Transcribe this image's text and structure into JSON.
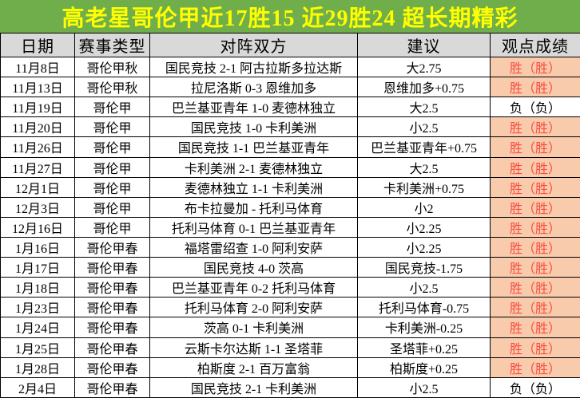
{
  "title": "高老星哥伦甲近17胜15  近29胜24  超长期精彩",
  "colors": {
    "title_bg": "#6fae4a",
    "title_text": "#ffff00",
    "header_bg": "#d9d9d9",
    "win_bg": "#f8cbad",
    "win_text": "#fa4b3e",
    "loss_text": "#000000",
    "border": "#000000"
  },
  "table": {
    "headers": [
      "日期",
      "赛事类型",
      "对阵双方",
      "建议",
      "观点成绩"
    ],
    "rows": [
      {
        "date": "11月8日",
        "league": "哥伦甲秋",
        "match": "国民竞技 2-1 阿古拉斯多拉达斯",
        "tip": "大2.75",
        "result": "胜（胜）",
        "outcome": "win"
      },
      {
        "date": "11月13日",
        "league": "哥伦甲秋",
        "match": "拉尼洛斯 0-3 恩维加多",
        "tip": "恩维加多+0.75",
        "result": "胜（胜）",
        "outcome": "win"
      },
      {
        "date": "11月19日",
        "league": "哥伦甲",
        "match": "巴兰基亚青年 1-0 麦德林独立",
        "tip": "大2.5",
        "result": "负（负）",
        "outcome": "loss"
      },
      {
        "date": "11月20日",
        "league": "哥伦甲",
        "match": "国民竞技 1-0 卡利美洲",
        "tip": "小2.5",
        "result": "胜（胜）",
        "outcome": "win"
      },
      {
        "date": "11月26日",
        "league": "哥伦甲",
        "match": "国民竞技 1-1 巴兰基亚青年",
        "tip": "巴兰基亚青年+0.75",
        "result": "胜（胜）",
        "outcome": "win"
      },
      {
        "date": "11月27日",
        "league": "哥伦甲",
        "match": "卡利美洲 2-1 麦德林独立",
        "tip": "大2.5",
        "result": "胜（胜）",
        "outcome": "win"
      },
      {
        "date": "12月1日",
        "league": "哥伦甲",
        "match": "麦德林独立 1-1 卡利美洲",
        "tip": "卡利美洲+0.75",
        "result": "胜（胜）",
        "outcome": "win"
      },
      {
        "date": "12月3日",
        "league": "哥伦甲",
        "match": "布卡拉曼加 - 托利马体育",
        "tip": "小2",
        "result": "胜（胜）",
        "outcome": "win"
      },
      {
        "date": "12月16日",
        "league": "哥伦甲",
        "match": "托利马体育 0-1 巴兰基亚青年",
        "tip": "小2.25",
        "result": "胜（胜）",
        "outcome": "win"
      },
      {
        "date": "1月16日",
        "league": "哥伦甲春",
        "match": "福塔雷绍查 1-0 阿利安萨",
        "tip": "小2.25",
        "result": "胜（胜）",
        "outcome": "win"
      },
      {
        "date": "1月17日",
        "league": "哥伦甲春",
        "match": "国民竞技 4-0 茨高",
        "tip": "国民竞技-1.75",
        "result": "胜（胜）",
        "outcome": "win"
      },
      {
        "date": "1月18日",
        "league": "哥伦甲春",
        "match": "巴兰基亚青年 0-2 托利马体育",
        "tip": "小2.5",
        "result": "胜（胜）",
        "outcome": "win"
      },
      {
        "date": "1月23日",
        "league": "哥伦甲春",
        "match": "托利马体育 2-0 阿利安萨",
        "tip": "托利马体育-0.75",
        "result": "胜（胜）",
        "outcome": "win"
      },
      {
        "date": "1月24日",
        "league": "哥伦甲春",
        "match": "茨高 0-1 卡利美洲",
        "tip": "卡利美洲-0.25",
        "result": "胜（胜）",
        "outcome": "win"
      },
      {
        "date": "1月25日",
        "league": "哥伦甲春",
        "match": "云斯卡尔达斯 1-1 圣塔菲",
        "tip": "圣塔菲+0.25",
        "result": "胜（胜）",
        "outcome": "win"
      },
      {
        "date": "1月28日",
        "league": "哥伦甲春",
        "match": "柏斯度 2-1 百万富翁",
        "tip": "柏斯度+0.25",
        "result": "胜（胜）",
        "outcome": "win"
      },
      {
        "date": "2月4日",
        "league": "哥伦甲春",
        "match": "国民竞技 2-1 卡利美洲",
        "tip": "小2.5",
        "result": "负（负）",
        "outcome": "loss"
      }
    ]
  }
}
